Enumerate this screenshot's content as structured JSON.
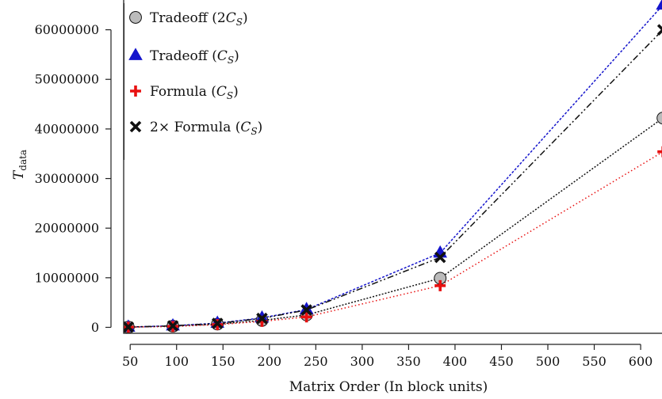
{
  "chart_data": {
    "type": "line",
    "xlabel": "Matrix Order (In block units)",
    "ylabel": "T",
    "ylabel_sub": "data",
    "xlim": [
      43,
      623
    ],
    "ylim": [
      -1200000,
      66000000
    ],
    "x_ticks": [
      50,
      100,
      150,
      200,
      250,
      300,
      350,
      400,
      450,
      500,
      550,
      600
    ],
    "y_ticks": [
      0,
      10000000,
      20000000,
      30000000,
      40000000,
      50000000,
      60000000
    ],
    "x_tick_labels": [
      "50",
      "100",
      "150",
      "200",
      "250",
      "300",
      "350",
      "400",
      "450",
      "500",
      "550",
      "600"
    ],
    "y_tick_labels": [
      "0",
      "10000000",
      "20000000",
      "30000000",
      "40000000",
      "50000000",
      "60000000"
    ],
    "x": [
      48,
      96,
      144,
      192,
      240,
      384,
      624
    ],
    "series": [
      {
        "name": "Tradeoff (2C_S)",
        "legend_main": "Tradeoff (2",
        "legend_var": "C",
        "legend_sub": "S",
        "legend_tail": ")",
        "color": "#111111",
        "marker": "circle",
        "marker_fill": "#bbbbbb",
        "dash": "2,2",
        "values": [
          50000,
          240000,
          650000,
          1400000,
          2500000,
          9900000,
          42200000
        ]
      },
      {
        "name": "Tradeoff (C_S)",
        "legend_main": "Tradeoff (",
        "legend_var": "C",
        "legend_sub": "S",
        "legend_tail": ")",
        "color": "#1515cc",
        "marker": "triangle",
        "marker_fill": "#1515cc",
        "dash": "3,2",
        "values": [
          60000,
          310000,
          850000,
          1900000,
          3600000,
          15000000,
          65000000
        ]
      },
      {
        "name": "Formula (C_S)",
        "legend_main": "Formula (",
        "legend_var": "C",
        "legend_sub": "S",
        "legend_tail": ")",
        "color": "#e81010",
        "marker": "plus",
        "marker_fill": "#e81010",
        "dash": "1.5,3",
        "values": [
          40000,
          180000,
          550000,
          1200000,
          2100000,
          8400000,
          35400000
        ]
      },
      {
        "name": "2× Formula (C_S)",
        "legend_main": "2× Formula (",
        "legend_var": "C",
        "legend_sub": "S",
        "legend_tail": ")",
        "color": "#111111",
        "marker": "x",
        "marker_fill": "#111111",
        "dash": "8,3,2,3,2,3",
        "values": [
          60000,
          300000,
          800000,
          1800000,
          3500000,
          14100000,
          60000000
        ]
      }
    ],
    "legend_position": "top-left",
    "grid": false
  }
}
